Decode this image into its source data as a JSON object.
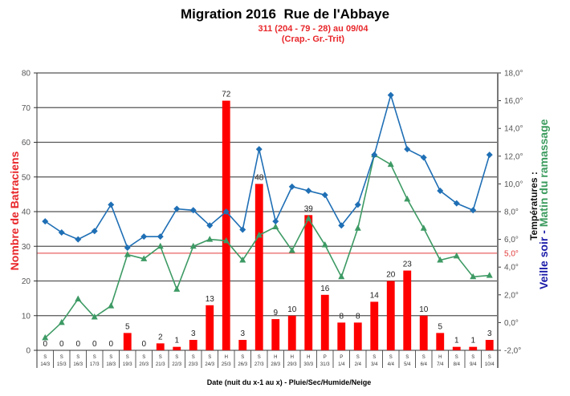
{
  "header": {
    "title": "Migration 2016  Rue de l'Abbaye",
    "subtitle_line1": "311 (204 - 79 - 28) au 09/04",
    "subtitle_line2": "(Crap.- Gr.-Trit)"
  },
  "axes": {
    "x_label": "Date (nuit du x-1 au x) - Pluie/Sec/Humide/Neige",
    "y_left_label": "Nombre de Batraciens",
    "y_right_label_line1": "Températures :",
    "y_right_label_part_blue": "Veille soir",
    "y_right_label_sep": " - ",
    "y_right_label_part_green": "Matin du ramassage",
    "threshold_label": "5,0°"
  },
  "colors": {
    "bars": "#ff0000",
    "veille_soir": "#1f6fb5",
    "matin": "#3d9a64",
    "threshold": "#e23b3b",
    "grid": "#555555"
  },
  "chart_data": {
    "type": "bar",
    "title": "Migration 2016  Rue de l'Abbaye",
    "subtitle": "311 (204 - 79 - 28) au 09/04 (Crap.- Gr.-Trit)",
    "xlabel": "Date (nuit du x-1 au x) - Pluie/Sec/Humide/Neige",
    "ylabel": "Nombre de Batraciens",
    "ylabel_right": "Températures : Veille soir - Matin du ramassage",
    "ylim": [
      0,
      80
    ],
    "yticks": [
      0,
      10,
      20,
      30,
      40,
      50,
      60,
      70,
      80
    ],
    "ylim_right": [
      -2,
      18
    ],
    "yticks_right": [
      "-2,0°",
      "0,0°",
      "2,0°",
      "4,0°",
      "6,0°",
      "8,0°",
      "10,0°",
      "12,0°",
      "14,0°",
      "16,0°",
      "18,0°"
    ],
    "grid": true,
    "threshold_right": 5.0,
    "categories": [
      "14/3",
      "15/3",
      "16/3",
      "17/3",
      "18/3",
      "19/3",
      "20/3",
      "21/3",
      "22/3",
      "23/3",
      "24/3",
      "25/3",
      "26/3",
      "27/3",
      "28/3",
      "29/3",
      "30/3",
      "31/3",
      "1/4",
      "2/4",
      "3/4",
      "4/4",
      "5/4",
      "6/4",
      "7/4",
      "8/4",
      "9/4",
      "10/4"
    ],
    "weather": [
      "S",
      "S",
      "S",
      "S",
      "S",
      "S",
      "S",
      "S",
      "S",
      "S",
      "S",
      "H",
      "S",
      "S",
      "H",
      "H",
      "H",
      "P",
      "P",
      "S",
      "S",
      "S",
      "S",
      "S",
      "H",
      "S",
      "S",
      "S"
    ],
    "series": [
      {
        "name": "Nombre de Batraciens",
        "type": "bar",
        "axis": "left",
        "values": [
          0,
          0,
          0,
          0,
          0,
          5,
          0,
          2,
          1,
          3,
          13,
          72,
          3,
          48,
          9,
          10,
          39,
          16,
          8,
          8,
          14,
          20,
          23,
          10,
          5,
          1,
          1,
          3
        ]
      },
      {
        "name": "Veille soir",
        "type": "line",
        "axis": "right",
        "marker": "diamond",
        "values": [
          7.3,
          6.5,
          6.0,
          6.6,
          8.5,
          5.4,
          6.2,
          6.2,
          8.2,
          8.1,
          7.0,
          8.0,
          6.7,
          12.5,
          7.3,
          9.8,
          9.5,
          9.2,
          7.0,
          8.5,
          12.1,
          16.4,
          12.5,
          11.9,
          9.5,
          8.6,
          8.1,
          12.1
        ]
      },
      {
        "name": "Matin du ramassage",
        "type": "line",
        "axis": "right",
        "marker": "triangle",
        "values": [
          -1.1,
          0.0,
          1.7,
          0.4,
          1.2,
          4.9,
          4.6,
          5.5,
          2.4,
          5.5,
          6.0,
          5.9,
          4.5,
          6.3,
          6.9,
          5.2,
          7.5,
          5.6,
          3.3,
          6.8,
          12.1,
          11.4,
          8.9,
          6.8,
          4.5,
          4.8,
          3.3,
          3.4
        ]
      }
    ]
  }
}
